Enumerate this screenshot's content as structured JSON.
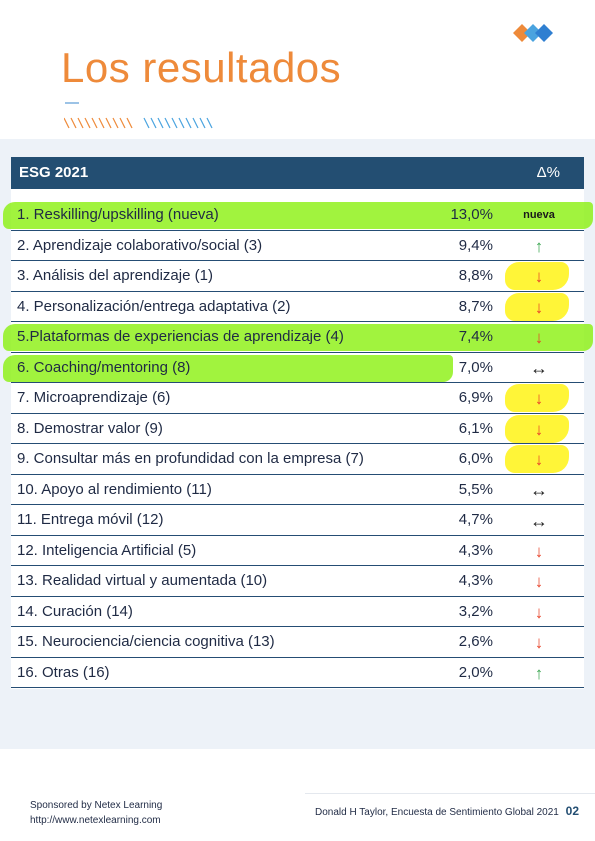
{
  "page": {
    "title": "Los resultados"
  },
  "colors": {
    "title": "#ee8a3a",
    "header_bg": "#234e72",
    "row_rule": "#254d74",
    "panel_bg": "#edf2f8",
    "highlight_green": "#8cf014",
    "highlight_yellow": "#fff200",
    "arrow_up": "#3aa650",
    "arrow_down": "#e8442b"
  },
  "table": {
    "title": "ESG 2021",
    "delta_header": "Δ%",
    "rows": [
      {
        "label": "1. Reskilling/upskilling (nueva)",
        "value": "13,0%",
        "change": "nueva",
        "change_type": "new",
        "highlight": "green",
        "highlight_scope": "full"
      },
      {
        "label": "2. Aprendizaje colaborativo/social (3)",
        "value": "9,4%",
        "change": "↑",
        "change_type": "up",
        "highlight": "none"
      },
      {
        "label": "3. Análisis del aprendizaje (1)",
        "value": "8,8%",
        "change": "↓",
        "change_type": "down",
        "highlight": "yellow"
      },
      {
        "label": "4. Personalización/entrega adaptativa (2)",
        "value": "8,7%",
        "change": "↓",
        "change_type": "down",
        "highlight": "yellow"
      },
      {
        "label": "5.Plataformas de experiencias de aprendizaje (4)",
        "value": "7,4%",
        "change": "↓",
        "change_type": "down",
        "highlight": "green",
        "highlight_scope": "full"
      },
      {
        "label": "6. Coaching/mentoring (8)",
        "value": "7,0%",
        "change": "↔",
        "change_type": "same",
        "highlight": "green",
        "highlight_scope": "partial"
      },
      {
        "label": "7. Microaprendizaje (6)",
        "value": "6,9%",
        "change": "↓",
        "change_type": "down",
        "highlight": "yellow"
      },
      {
        "label": "8. Demostrar valor (9)",
        "value": "6,1%",
        "change": "↓",
        "change_type": "down",
        "highlight": "yellow"
      },
      {
        "label": "9. Consultar más en profundidad con la empresa (7)",
        "value": "6,0%",
        "change": "↓",
        "change_type": "down",
        "highlight": "yellow"
      },
      {
        "label": "10. Apoyo al rendimiento (11)",
        "value": "5,5%",
        "change": "↔",
        "change_type": "same",
        "highlight": "none"
      },
      {
        "label": "11. Entrega móvil (12)",
        "value": "4,7%",
        "change": "↔",
        "change_type": "same",
        "highlight": "none"
      },
      {
        "label": "12. Inteligencia Artificial (5)",
        "value": "4,3%",
        "change": "↓",
        "change_type": "down",
        "highlight": "none"
      },
      {
        "label": "13. Realidad virtual y aumentada (10)",
        "value": "4,3%",
        "change": "↓",
        "change_type": "down",
        "highlight": "none"
      },
      {
        "label": "14. Curación (14)",
        "value": "3,2%",
        "change": "↓",
        "change_type": "down",
        "highlight": "none"
      },
      {
        "label": "15. Neurociencia/ciencia cognitiva (13)",
        "value": "2,6%",
        "change": "↓",
        "change_type": "down",
        "highlight": "none"
      },
      {
        "label": "16. Otras (16)",
        "value": "2,0%",
        "change": "↑",
        "change_type": "up",
        "highlight": "none"
      }
    ]
  },
  "footer": {
    "sponsor": "Sponsored by Netex Learning",
    "url": "http://www.netexlearning.com",
    "credit": "Donald H Taylor, Encuesta de Sentimiento Global 2021",
    "page_number": "02"
  }
}
